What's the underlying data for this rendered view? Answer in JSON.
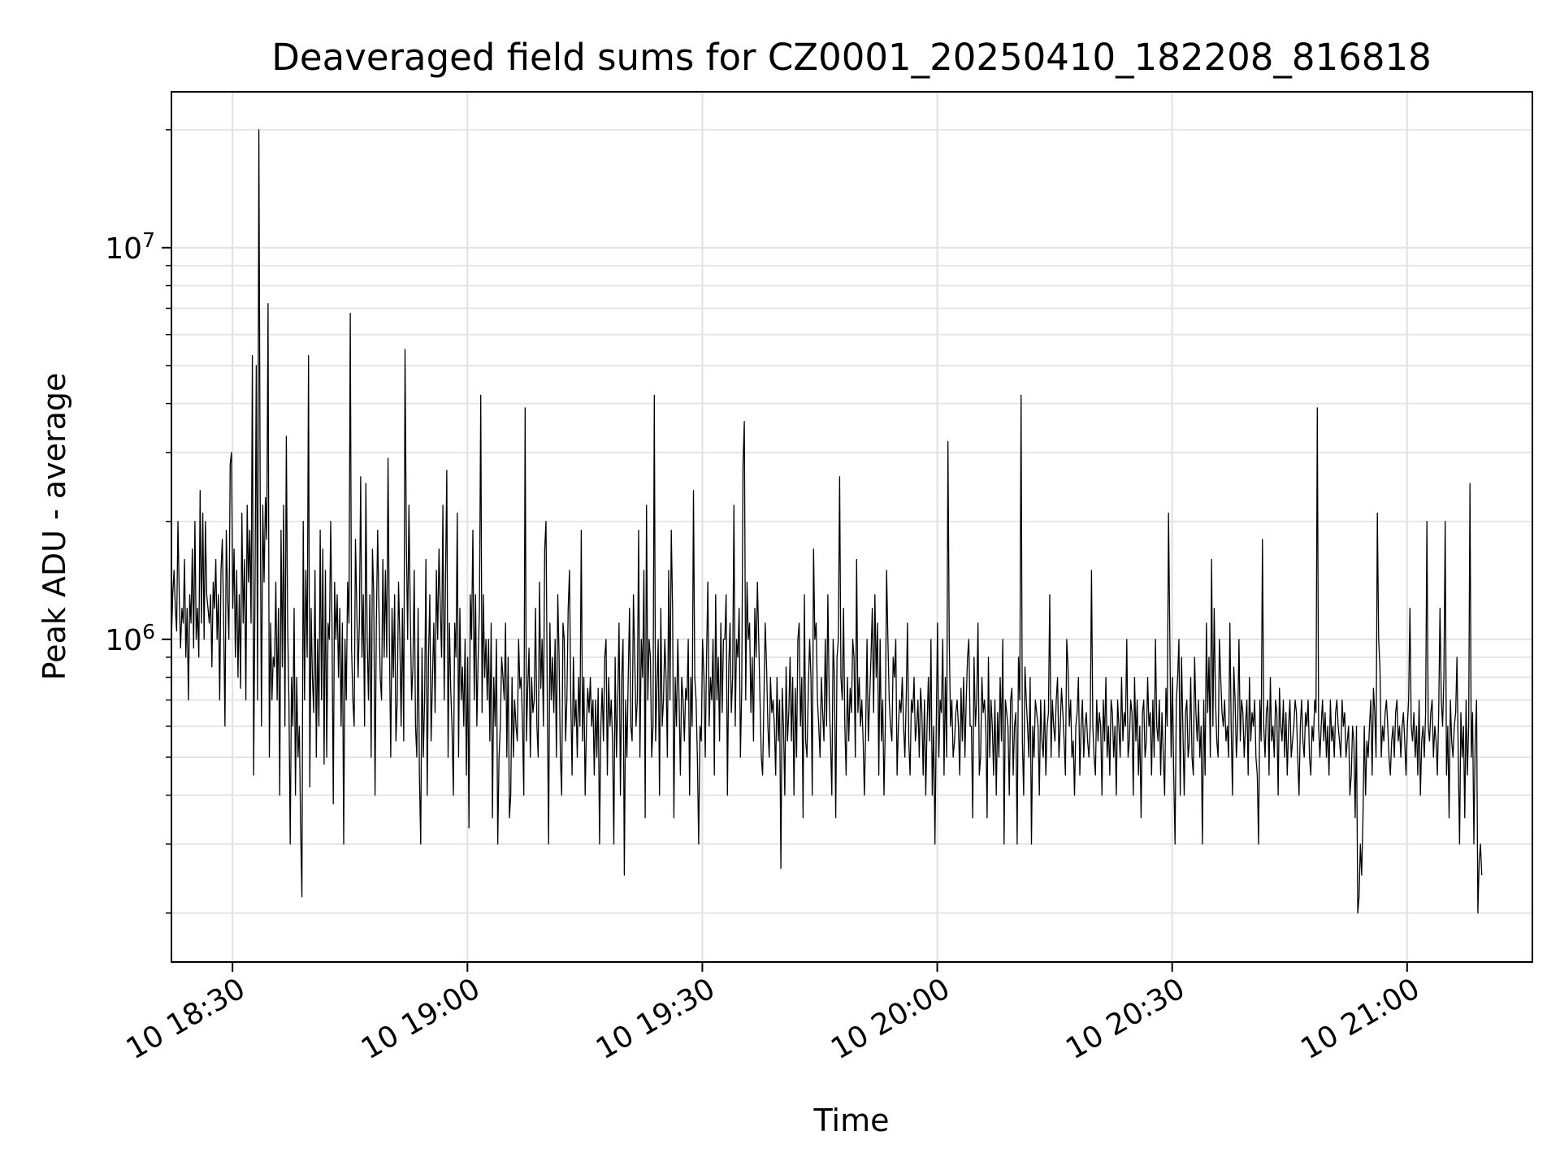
{
  "chart_data": {
    "type": "line",
    "title": "Deaveraged field sums for CZ0001_20250410_182208_816818",
    "xlabel": "Time",
    "ylabel": "Peak ADU - average",
    "yscale": "log",
    "grid": true,
    "legend": "none",
    "line_color": "#000000",
    "x_range": [
      "2025-04-10 18:22:12",
      "2025-04-10 21:16:00"
    ],
    "y_range": [
      150000,
      25000000
    ],
    "x_ticks": [
      {
        "time": "2025-04-10 18:30",
        "label": "10 18:30"
      },
      {
        "time": "2025-04-10 19:00",
        "label": "10 19:00"
      },
      {
        "time": "2025-04-10 19:30",
        "label": "10 19:30"
      },
      {
        "time": "2025-04-10 20:00",
        "label": "10 20:00"
      },
      {
        "time": "2025-04-10 20:30",
        "label": "10 20:30"
      },
      {
        "time": "2025-04-10 21:00",
        "label": "10 21:00"
      }
    ],
    "y_major_ticks": [
      {
        "value": 1000000,
        "label": "10",
        "exponent": "6"
      },
      {
        "value": 10000000,
        "label": "10",
        "exponent": "7"
      }
    ],
    "series": [
      {
        "points_every_seconds": 10,
        "start_time": "2025-04-10 18:22:12",
        "values": [
          1000000,
          1300000,
          1500000,
          1200000,
          1050000,
          2000000,
          1300000,
          950000,
          1200000,
          1100000,
          1600000,
          900000,
          1200000,
          700000,
          1300000,
          1100000,
          1700000,
          950000,
          2000000,
          1000000,
          1200000,
          900000,
          2400000,
          1100000,
          2100000,
          1000000,
          2000000,
          1300000,
          1200000,
          1100000,
          1300000,
          850000,
          1400000,
          1200000,
          1600000,
          1000000,
          1300000,
          700000,
          1500000,
          1800000,
          1100000,
          600000,
          1900000,
          1300000,
          1000000,
          2800000,
          3000000,
          1200000,
          1700000,
          900000,
          1500000,
          800000,
          1300000,
          750000,
          2100000,
          1100000,
          1600000,
          700000,
          2200000,
          1400000,
          1900000,
          1100000,
          5300000,
          450000,
          1300000,
          5000000,
          700000,
          20000000,
          2400000,
          600000,
          2200000,
          1400000,
          2300000,
          1800000,
          7200000,
          500000,
          1100000,
          700000,
          900000,
          850000,
          1400000,
          700000,
          1200000,
          400000,
          1900000,
          850000,
          2200000,
          600000,
          3300000,
          1100000,
          700000,
          300000,
          800000,
          600000,
          1200000,
          400000,
          800000,
          500000,
          600000,
          330000,
          220000,
          2000000,
          700000,
          1500000,
          900000,
          5300000,
          420000,
          1200000,
          800000,
          650000,
          1500000,
          500000,
          1000000,
          600000,
          1900000,
          700000,
          1700000,
          480000,
          1500000,
          500000,
          1100000,
          1000000,
          2000000,
          1100000,
          380000,
          1400000,
          1000000,
          1300000,
          800000,
          1200000,
          600000,
          1100000,
          300000,
          1000000,
          700000,
          1400000,
          1100000,
          6800000,
          950000,
          700000,
          600000,
          1800000,
          1200000,
          800000,
          1100000,
          2600000,
          900000,
          1300000,
          600000,
          2500000,
          1000000,
          700000,
          1300000,
          500000,
          1700000,
          1300000,
          400000,
          1100000,
          1900000,
          1200000,
          800000,
          700000,
          1600000,
          900000,
          1500000,
          900000,
          2900000,
          1000000,
          500000,
          1200000,
          800000,
          1300000,
          550000,
          700000,
          1400000,
          1000000,
          600000,
          1200000,
          550000,
          5500000,
          1800000,
          1000000,
          2200000,
          1200000,
          700000,
          850000,
          1500000,
          600000,
          500000,
          1200000,
          450000,
          300000,
          950000,
          500000,
          700000,
          1600000,
          400000,
          900000,
          1300000,
          550000,
          800000,
          1100000,
          650000,
          1500000,
          1000000,
          1700000,
          1200000,
          900000,
          2200000,
          700000,
          1400000,
          2700000,
          500000,
          1100000,
          750000,
          600000,
          400000,
          1100000,
          900000,
          2100000,
          500000,
          1200000,
          700000,
          850000,
          600000,
          1000000,
          450000,
          900000,
          330000,
          1300000,
          1000000,
          1900000,
          700000,
          1300000,
          600000,
          900000,
          1200000,
          4200000,
          650000,
          1300000,
          800000,
          1000000,
          700000,
          1000000,
          550000,
          1100000,
          350000,
          800000,
          600000,
          1000000,
          300000,
          500000,
          600000,
          900000,
          800000,
          700000,
          1100000,
          500000,
          900000,
          350000,
          400000,
          800000,
          500000,
          700000,
          600000,
          550000,
          1000000,
          750000,
          800000,
          600000,
          400000,
          3900000,
          550000,
          750000,
          950000,
          500000,
          800000,
          650000,
          700000,
          1200000,
          600000,
          500000,
          1400000,
          750000,
          1000000,
          600000,
          1700000,
          2000000,
          700000,
          300000,
          1100000,
          700000,
          900000,
          650000,
          1000000,
          500000,
          1300000,
          900000,
          500000,
          400000,
          1100000,
          1000000,
          550000,
          700000,
          1200000,
          1500000,
          700000,
          450000,
          900000,
          600000,
          700000,
          500000,
          800000,
          600000,
          1900000,
          550000,
          800000,
          400000,
          600000,
          750000,
          650000,
          800000,
          600000,
          700000,
          450000,
          700000,
          500000,
          750000,
          300000,
          600000,
          750000,
          550000,
          900000,
          1000000,
          450000,
          800000,
          600000,
          700000,
          550000,
          300000,
          900000,
          500000,
          700000,
          1100000,
          400000,
          800000,
          1000000,
          250000,
          700000,
          500000,
          800000,
          1200000,
          600000,
          550000,
          1300000,
          900000,
          600000,
          700000,
          1900000,
          500000,
          1000000,
          800000,
          1500000,
          350000,
          2200000,
          700000,
          1000000,
          900000,
          500000,
          600000,
          4200000,
          550000,
          750000,
          1000000,
          400000,
          1200000,
          600000,
          700000,
          1000000,
          800000,
          500000,
          1500000,
          700000,
          1900000,
          1200000,
          350000,
          800000,
          600000,
          1000000,
          700000,
          450000,
          800000,
          700000,
          550000,
          750000,
          700000,
          1000000,
          400000,
          800000,
          600000,
          2400000,
          800000,
          700000,
          500000,
          300000,
          600000,
          550000,
          1000000,
          800000,
          500000,
          900000,
          1400000,
          600000,
          800000,
          700000,
          1000000,
          450000,
          1300000,
          700000,
          900000,
          550000,
          1100000,
          650000,
          1000000,
          1000000,
          1300000,
          400000,
          850000,
          1100000,
          650000,
          800000,
          2200000,
          600000,
          1000000,
          900000,
          1200000,
          500000,
          750000,
          2800000,
          3600000,
          700000,
          1400000,
          1000000,
          1100000,
          650000,
          900000,
          550000,
          1200000,
          900000,
          1400000,
          1000000,
          700000,
          500000,
          450000,
          700000,
          1100000,
          850000,
          600000,
          500000,
          800000,
          650000,
          700000,
          600000,
          450000,
          800000,
          550000,
          700000,
          260000,
          750000,
          600000,
          400000,
          850000,
          550000,
          650000,
          900000,
          550000,
          800000,
          400000,
          750000,
          500000,
          1000000,
          1100000,
          600000,
          800000,
          350000,
          1300000,
          550000,
          500000,
          750000,
          1000000,
          800000,
          400000,
          1700000,
          1000000,
          1100000,
          700000,
          600000,
          500000,
          800000,
          650000,
          550000,
          1000000,
          600000,
          1300000,
          700000,
          550000,
          400000,
          1000000,
          800000,
          350000,
          900000,
          1000000,
          2600000,
          800000,
          700000,
          1200000,
          600000,
          450000,
          800000,
          550000,
          750000,
          650000,
          1000000,
          900000,
          500000,
          1600000,
          650000,
          800000,
          600000,
          700000,
          550000,
          400000,
          600000,
          1000000,
          550000,
          700000,
          900000,
          1200000,
          650000,
          1300000,
          800000,
          1100000,
          450000,
          1000000,
          550000,
          700000,
          400000,
          600000,
          1500000,
          1000000,
          700000,
          600000,
          550000,
          900000,
          800000,
          1000000,
          450000,
          600000,
          700000,
          650000,
          800000,
          600000,
          500000,
          700000,
          1100000,
          550000,
          450000,
          700000,
          650000,
          800000,
          550000,
          600000,
          700000,
          500000,
          750000,
          650000,
          450000,
          700000,
          400000,
          600000,
          800000,
          550000,
          1000000,
          400000,
          600000,
          300000,
          600000,
          1100000,
          500000,
          700000,
          650000,
          1000000,
          450000,
          800000,
          500000,
          3200000,
          1000000,
          600000,
          700000,
          500000,
          550000,
          650000,
          700000,
          600000,
          450000,
          750000,
          550000,
          800000,
          500000,
          700000,
          900000,
          1000000,
          600000,
          600000,
          350000,
          900000,
          600000,
          700000,
          1100000,
          450000,
          500000,
          800000,
          650000,
          700000,
          600000,
          350000,
          900000,
          500000,
          700000,
          600000,
          450000,
          700000,
          400000,
          650000,
          500000,
          800000,
          550000,
          1000000,
          300000,
          700000,
          650000,
          600000,
          400000,
          700000,
          750000,
          450000,
          600000,
          650000,
          300000,
          900000,
          700000,
          4200000,
          550000,
          400000,
          850000,
          700000,
          600000,
          500000,
          800000,
          300000,
          600000,
          500000,
          700000,
          650000,
          600000,
          400000,
          700000,
          550000,
          500000,
          700000,
          450000,
          600000,
          650000,
          1300000,
          500000,
          700000,
          600000,
          550000,
          700000,
          800000,
          500000,
          600000,
          750000,
          650000,
          550000,
          450000,
          1000000,
          850000,
          600000,
          700000,
          500000,
          550000,
          400000,
          600000,
          650000,
          800000,
          450000,
          600000,
          700000,
          500000,
          600000,
          650000,
          550000,
          500000,
          600000,
          1500000,
          600000,
          500000,
          450000,
          700000,
          550000,
          650000,
          600000,
          400000,
          700000,
          550000,
          800000,
          500000,
          600000,
          450000,
          700000,
          650000,
          500000,
          600000,
          400000,
          700000,
          600000,
          500000,
          800000,
          550000,
          650000,
          600000,
          1000000,
          500000,
          550000,
          700000,
          650000,
          400000,
          800000,
          550000,
          700000,
          450000,
          600000,
          350000,
          650000,
          700000,
          500000,
          550000,
          800000,
          600000,
          650000,
          450000,
          700000,
          500000,
          1000000,
          600000,
          550000,
          700000,
          450000,
          650000,
          500000,
          400000,
          750000,
          600000,
          2100000,
          1000000,
          500000,
          800000,
          450000,
          300000,
          700000,
          800000,
          1000000,
          400000,
          900000,
          600000,
          400000,
          650000,
          700000,
          500000,
          550000,
          800000,
          500000,
          450000,
          900000,
          650000,
          550000,
          700000,
          500000,
          600000,
          300000,
          700000,
          450000,
          1100000,
          650000,
          900000,
          500000,
          1600000,
          600000,
          1200000,
          700000,
          550000,
          500000,
          1000000,
          800000,
          650000,
          600000,
          700000,
          550000,
          600000,
          500000,
          1100000,
          600000,
          400000,
          850000,
          700000,
          500000,
          600000,
          1000000,
          550000,
          700000,
          650000,
          500000,
          600000,
          700000,
          450000,
          800000,
          550000,
          650000,
          600000,
          700000,
          500000,
          450000,
          300000,
          700000,
          550000,
          1800000,
          600000,
          500000,
          650000,
          700000,
          450000,
          800000,
          550000,
          600000,
          500000,
          700000,
          650000,
          400000,
          750000,
          600000,
          550000,
          700000,
          500000,
          650000,
          450000,
          600000,
          700000,
          500000,
          550000,
          600000,
          700000,
          650000,
          500000,
          400000,
          600000,
          700000,
          550000,
          500000,
          650000,
          600000,
          700000,
          500000,
          450000,
          600000,
          550000,
          700000,
          650000,
          3900000,
          600000,
          500000,
          600000,
          700000,
          550000,
          650000,
          500000,
          600000,
          450000,
          700000,
          550000,
          600000,
          500000,
          650000,
          700000,
          600000,
          550000,
          500000,
          700000,
          600000,
          650000,
          500000,
          550000,
          600000,
          400000,
          450000,
          600000,
          550000,
          350000,
          600000,
          200000,
          220000,
          300000,
          250000,
          350000,
          600000,
          400000,
          550000,
          500000,
          600000,
          700000,
          450000,
          750000,
          650000,
          500000,
          2100000,
          1000000,
          850000,
          500000,
          600000,
          550000,
          650000,
          700000,
          600000,
          500000,
          450000,
          550000,
          600000,
          500000,
          650000,
          700000,
          550000,
          600000,
          500000,
          600000,
          650000,
          550000,
          450000,
          600000,
          700000,
          1200000,
          600000,
          550000,
          650000,
          500000,
          600000,
          450000,
          700000,
          400000,
          550000,
          600000,
          500000,
          650000,
          2000000,
          600000,
          550000,
          650000,
          700000,
          500000,
          600000,
          550000,
          450000,
          650000,
          1200000,
          700000,
          600000,
          800000,
          2000000,
          450000,
          600000,
          350000,
          700000,
          550000,
          500000,
          600000,
          650000,
          900000,
          500000,
          300000,
          650000,
          500000,
          600000,
          350000,
          700000,
          450000,
          600000,
          2500000,
          500000,
          650000,
          300000,
          550000,
          700000,
          200000,
          270000,
          300000,
          250000
        ]
      }
    ]
  }
}
